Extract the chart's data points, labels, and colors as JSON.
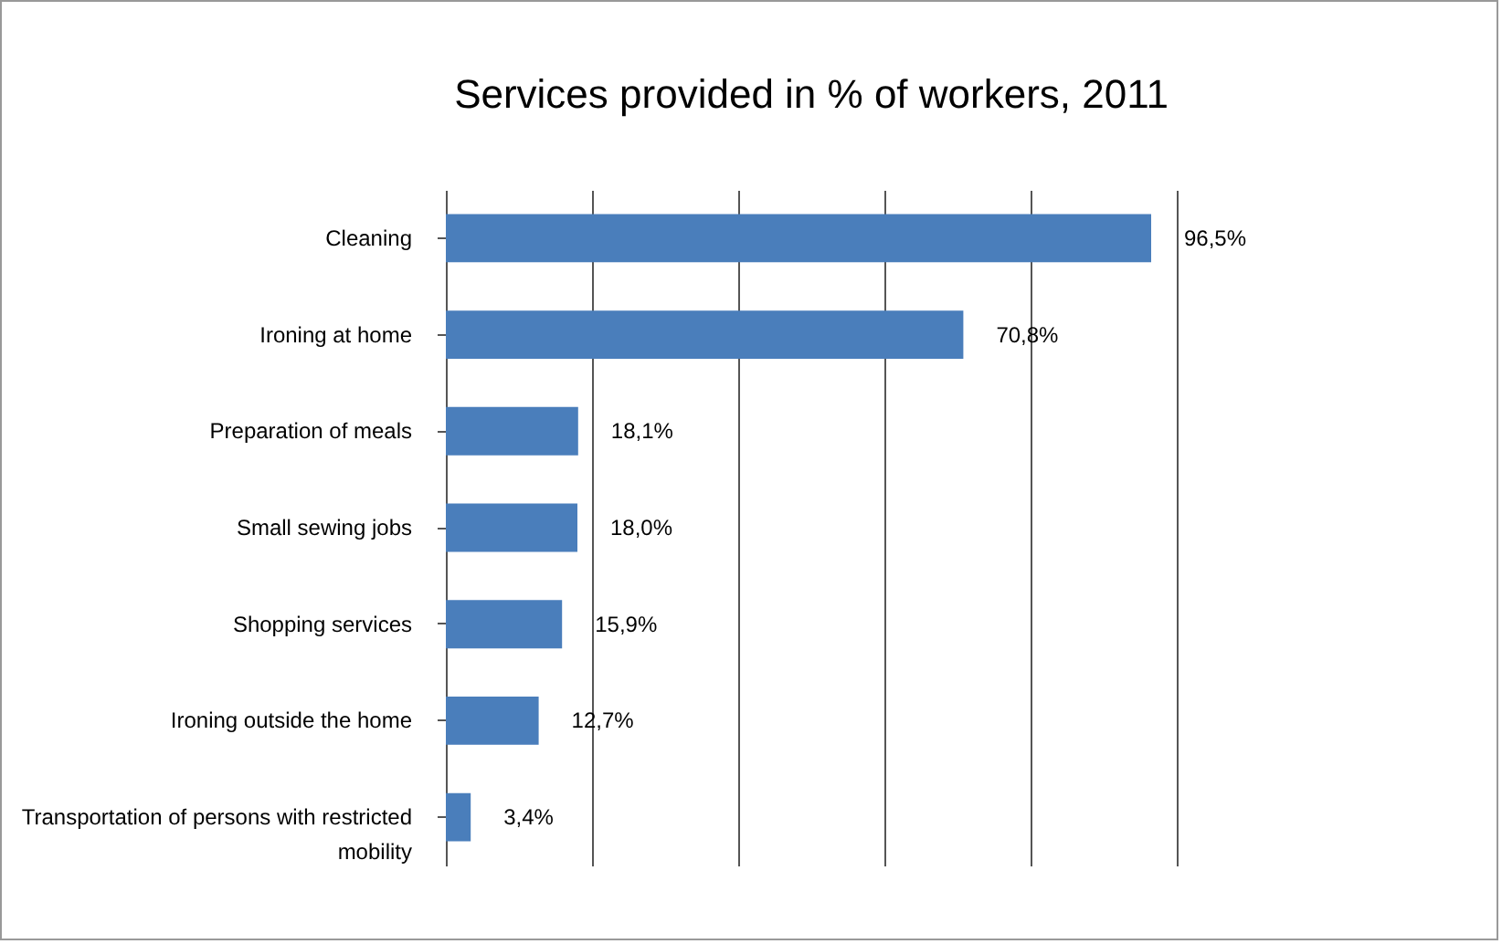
{
  "chart_data": {
    "type": "bar",
    "orientation": "horizontal",
    "title": "Services provided in % of workers, 2011",
    "categories": [
      "Cleaning",
      "Ironing at home",
      "Preparation of meals",
      "Small sewing jobs",
      "Shopping services",
      "Ironing outside the home",
      "Transportation of persons with restricted mobility"
    ],
    "values": [
      96.5,
      70.8,
      18.1,
      18.0,
      15.9,
      12.7,
      3.4
    ],
    "value_labels": [
      "96,5%",
      "70,8%",
      "18,1%",
      "18,0%",
      "15,9%",
      "12,7%",
      "3,4%"
    ],
    "color": "#4a7ebb",
    "xlim": [
      0,
      100
    ],
    "xticks": [
      {
        "value": 0,
        "label": null
      },
      {
        "value": 20,
        "label": null
      },
      {
        "value": 40,
        "label": null
      },
      {
        "value": 60,
        "label": null
      },
      {
        "value": 80,
        "label": null
      },
      {
        "value": 100,
        "label": null
      }
    ],
    "grid": "x",
    "tick_labels": "y"
  }
}
